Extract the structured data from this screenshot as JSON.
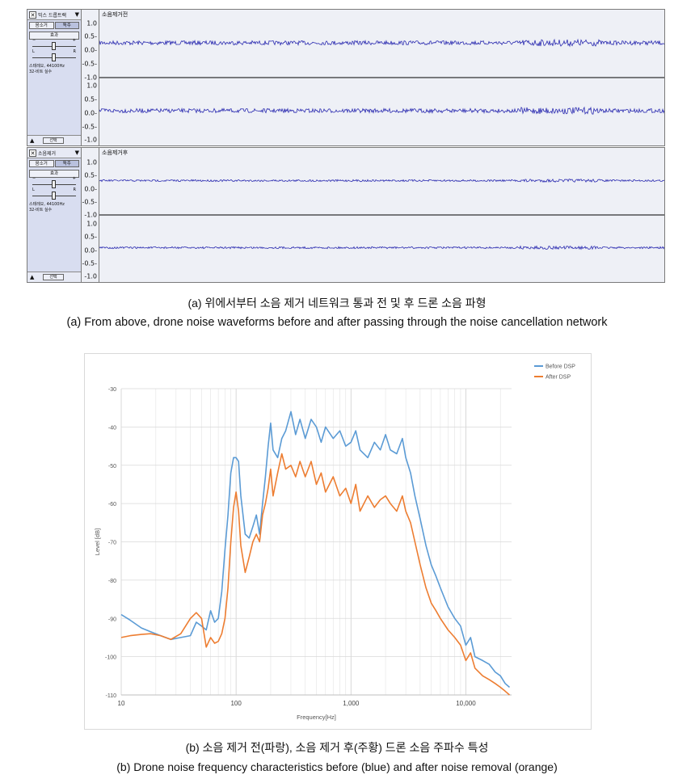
{
  "tracks": [
    {
      "panel_name": "믹스 드롭트랙",
      "track_label": "소음제거전",
      "mute_label": "음소거",
      "solo_label": "독주",
      "effects_label": "효과",
      "gain_min": "−",
      "gain_max": "+",
      "pan_left": "L",
      "pan_right": "R",
      "info_line1": "스테레오, 44100Hz",
      "info_line2": "32-비트 실수",
      "fold_label": "선택",
      "scale_labels": [
        "1.0",
        "0.5-",
        "0.0-",
        "-0.5-",
        "-1.0",
        "1.0",
        "0.5-",
        "0.0-",
        "-0.5-",
        "-1.0"
      ]
    },
    {
      "panel_name": "소음제거",
      "track_label": "소음제거후",
      "mute_label": "음소거",
      "solo_label": "독주",
      "effects_label": "효과",
      "gain_min": "−",
      "gain_max": "+",
      "pan_left": "L",
      "pan_right": "R",
      "info_line1": "스테레오, 44100Hz",
      "info_line2": "32-비트 실수",
      "fold_label": "선택",
      "scale_labels": [
        "1.0",
        "0.5-",
        "0.0-",
        "-0.5-",
        "-1.0",
        "1.0",
        "0.5-",
        "0.0-",
        "-0.5-",
        "-1.0"
      ]
    }
  ],
  "captions": {
    "a_ko": "(a) 위에서부터 소음 제거 네트워크 통과 전 및 후 드론 소음 파형",
    "a_en": "(a) From above, drone noise waveforms before and after passing through the noise cancellation network",
    "b_ko": "(b) 소음 제거 전(파랑), 소음 제거 후(주황) 드론 소음 주파수 특성",
    "b_en": "(b) Drone noise frequency characteristics before (blue) and after noise removal (orange)"
  },
  "colors": {
    "waveform": "#2b2bb0",
    "before": "#5b9bd5",
    "after": "#ed7d31"
  },
  "chart_data": {
    "type": "line",
    "title": "",
    "xlabel": "Frequency[Hz]",
    "ylabel": "Level [dB]",
    "x_scale": "log",
    "xlim": [
      10,
      25000
    ],
    "ylim": [
      -110,
      -30
    ],
    "x_ticks": [
      10,
      100,
      1000,
      10000
    ],
    "x_tick_labels": [
      "10",
      "100",
      "1,000",
      "10,000"
    ],
    "y_ticks": [
      -30,
      -40,
      -50,
      -60,
      -70,
      -80,
      -90,
      -100,
      -110
    ],
    "grid": true,
    "legend_position": "top-right",
    "series": [
      {
        "name": "Before DSP",
        "x": [
          10,
          12,
          15,
          18,
          22,
          27,
          33,
          40,
          45,
          50,
          55,
          60,
          65,
          70,
          75,
          80,
          85,
          90,
          95,
          100,
          105,
          110,
          120,
          130,
          140,
          150,
          160,
          170,
          180,
          190,
          200,
          210,
          230,
          250,
          270,
          300,
          330,
          360,
          400,
          450,
          500,
          550,
          600,
          700,
          800,
          900,
          1000,
          1100,
          1200,
          1400,
          1600,
          1800,
          2000,
          2200,
          2500,
          2800,
          3000,
          3300,
          3600,
          4000,
          4500,
          5000,
          5500,
          6000,
          7000,
          8000,
          9000,
          10000,
          11000,
          12000,
          14000,
          16000,
          18000,
          20000,
          22000,
          24000
        ],
        "y": [
          -89,
          -90.5,
          -92.5,
          -93.5,
          -94.5,
          -95.5,
          -95,
          -94.5,
          -91,
          -92,
          -93,
          -88,
          -91,
          -90,
          -83,
          -72,
          -63,
          -52,
          -48,
          -48,
          -49,
          -58,
          -68,
          -69,
          -66,
          -63,
          -68,
          -60,
          -53,
          -45,
          -39,
          -46,
          -48,
          -43,
          -41,
          -36,
          -42,
          -38,
          -43,
          -38,
          -40,
          -44,
          -40,
          -43,
          -41,
          -45,
          -44,
          -41,
          -46,
          -48,
          -44,
          -46,
          -42,
          -46,
          -47,
          -43,
          -48,
          -52,
          -58,
          -64,
          -71,
          -76,
          -79,
          -82,
          -87,
          -90,
          -92,
          -97,
          -95,
          -100,
          -101,
          -102,
          -104,
          -105,
          -107,
          -108
        ]
      },
      {
        "name": "After DSP",
        "x": [
          10,
          12,
          15,
          18,
          22,
          27,
          33,
          40,
          45,
          50,
          55,
          60,
          65,
          70,
          75,
          80,
          85,
          90,
          95,
          100,
          105,
          110,
          120,
          130,
          140,
          150,
          160,
          170,
          180,
          190,
          200,
          210,
          230,
          250,
          270,
          300,
          330,
          360,
          400,
          450,
          500,
          550,
          600,
          700,
          800,
          900,
          1000,
          1100,
          1200,
          1400,
          1600,
          1800,
          2000,
          2200,
          2500,
          2800,
          3000,
          3300,
          3600,
          4000,
          4500,
          5000,
          5500,
          6000,
          7000,
          8000,
          9000,
          10000,
          11000,
          12000,
          14000,
          16000,
          18000,
          20000,
          22000,
          24000
        ],
        "y": [
          -95,
          -94.5,
          -94.2,
          -94,
          -94.5,
          -95.5,
          -94,
          -90,
          -88.5,
          -90,
          -97.5,
          -95,
          -96.5,
          -96,
          -94,
          -90,
          -82,
          -70,
          -61,
          -57,
          -62,
          -71,
          -78,
          -74,
          -70,
          -68,
          -70,
          -63,
          -60,
          -56,
          -51,
          -58,
          -52,
          -47,
          -51,
          -50,
          -53,
          -49,
          -53,
          -49,
          -55,
          -52,
          -57,
          -53,
          -58,
          -56,
          -60,
          -55,
          -62,
          -58,
          -61,
          -59,
          -58,
          -60,
          -62,
          -58,
          -62,
          -65,
          -70,
          -76,
          -82,
          -86,
          -88,
          -90,
          -93,
          -95,
          -97,
          -101,
          -99,
          -103,
          -105,
          -106,
          -107,
          -108,
          -109,
          -110
        ]
      }
    ]
  }
}
